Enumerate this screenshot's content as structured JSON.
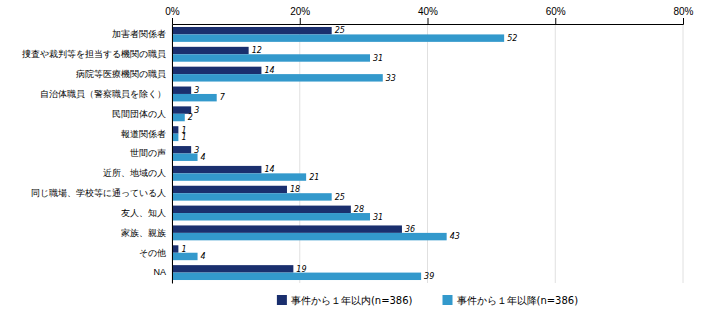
{
  "chart_data": {
    "type": "bar",
    "orientation": "horizontal",
    "categories": [
      "加害者関係者",
      "捜査や裁判等を担当する機関の職員",
      "病院等医療機関の職員",
      "自治体職員（警察職員を除く）",
      "民間団体の人",
      "報道関係者",
      "世間の声",
      "近所、地域の人",
      "同じ職場、学校等に通っている人",
      "友人、知人",
      "家族、親族",
      "その他",
      "NA"
    ],
    "series": [
      {
        "name": "事件から１年以内(n=386)",
        "color": "#1a2f6e",
        "values": [
          25,
          12,
          14,
          3,
          3,
          1,
          3,
          14,
          18,
          28,
          36,
          1,
          19
        ]
      },
      {
        "name": "事件から１年以降(n=386)",
        "color": "#3399cc",
        "values": [
          52,
          31,
          33,
          7,
          2,
          1,
          4,
          21,
          25,
          31,
          43,
          4,
          39
        ]
      }
    ],
    "xlim": [
      0,
      80
    ],
    "xticks": [
      {
        "value": 0,
        "label": "0%"
      },
      {
        "value": 20,
        "label": "20%"
      },
      {
        "value": 40,
        "label": "40%"
      },
      {
        "value": 60,
        "label": "60%"
      },
      {
        "value": 80,
        "label": "80%"
      }
    ],
    "grid": true,
    "data_labels": true,
    "legend": "bottom"
  }
}
